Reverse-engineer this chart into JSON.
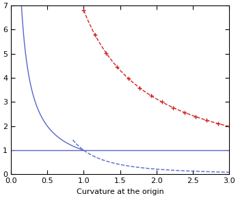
{
  "xlim": [
    0.0,
    3.0
  ],
  "ylim": [
    0.0,
    7.0
  ],
  "xlabel": "Curvature at the origin",
  "xticks": [
    0.0,
    0.5,
    1.0,
    1.5,
    2.0,
    2.5,
    3.0
  ],
  "yticks": [
    0,
    1,
    2,
    3,
    4,
    5,
    6,
    7
  ],
  "blue_color": "#5566cc",
  "red_dashed_color": "#cc2222",
  "hline_y": 1.0,
  "figsize": [
    3.48,
    2.9
  ],
  "dpi": 100,
  "blue_solid_xstart": 0.143,
  "red_xstart": 1.0,
  "red_xend": 3.0,
  "red_a": 6.8,
  "red_k": 1.12,
  "red_num_markers": 14,
  "blue_dash_xstart": 0.85,
  "blue_dash_xend": 3.0
}
